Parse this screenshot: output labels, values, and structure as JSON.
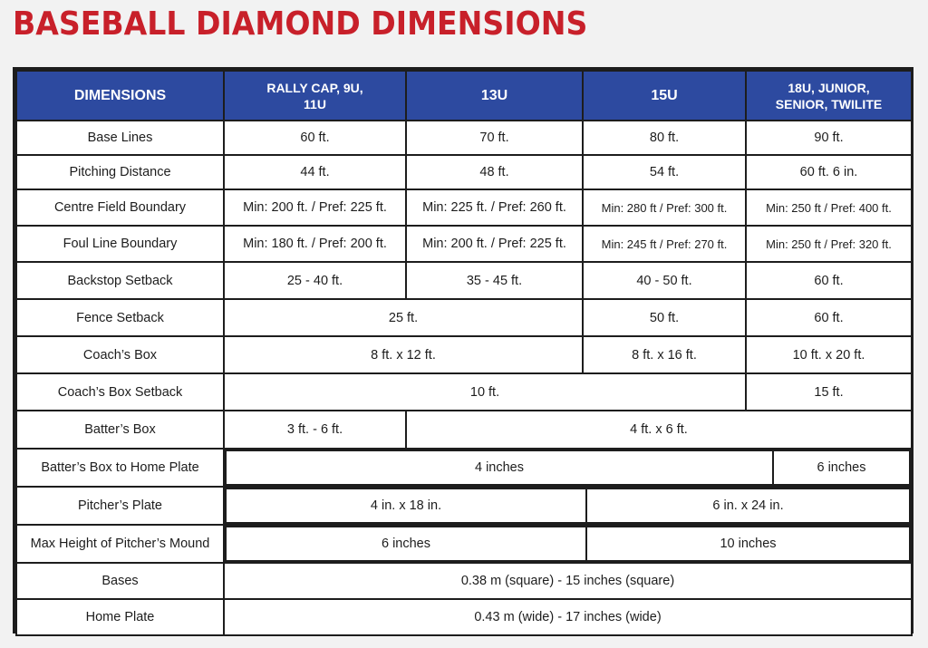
{
  "title": "BASEBALL DIAMOND DIMENSIONS",
  "headers": [
    "DIMENSIONS",
    "RALLY CAP, 9U, 11U",
    "13U",
    "15U",
    "18U, JUNIOR, SENIOR, TWILITE"
  ],
  "rows": {
    "base_lines": {
      "label": "Base Lines",
      "c1": "60 ft.",
      "c2": "70 ft.",
      "c3": "80 ft.",
      "c4": "90 ft."
    },
    "pitching_distance": {
      "label": "Pitching Distance",
      "c1": "44 ft.",
      "c2": "48 ft.",
      "c3": "54 ft.",
      "c4": "60 ft. 6 in."
    },
    "centre_field": {
      "label": "Centre Field Boundary",
      "c1": "Min: 200 ft. / Pref: 225 ft.",
      "c2": "Min: 225 ft. / Pref: 260 ft.",
      "c3": "Min: 280 ft / Pref: 300 ft.",
      "c4": "Min: 250 ft / Pref: 400 ft."
    },
    "foul_line": {
      "label": "Foul Line Boundary",
      "c1": "Min: 180 ft. / Pref: 200 ft.",
      "c2": "Min: 200 ft. / Pref: 225 ft.",
      "c3": "Min: 245 ft / Pref: 270 ft.",
      "c4": "Min: 250 ft / Pref: 320 ft."
    },
    "backstop": {
      "label": "Backstop Setback",
      "c1": "25 - 40 ft.",
      "c2": "35 - 45 ft.",
      "c3": "40 - 50 ft.",
      "c4": "60 ft."
    },
    "fence": {
      "label": "Fence Setback",
      "c12": "25 ft.",
      "c3": "50 ft.",
      "c4": "60 ft."
    },
    "coach_box": {
      "label": "Coach’s Box",
      "c12": "8 ft. x 12 ft.",
      "c3": "8 ft. x 16 ft.",
      "c4": "10 ft. x 20 ft."
    },
    "coach_box_setback": {
      "label": "Coach’s Box Setback",
      "c123": "10 ft.",
      "c4": "15 ft."
    },
    "batters_box": {
      "label": "Batter’s Box",
      "c1": "3 ft. - 6 ft.",
      "c234": "4 ft. x 6 ft."
    },
    "batters_box_home": {
      "label": "Batter’s Box to Home Plate",
      "left": "4 inches",
      "right": "6 inches"
    },
    "pitchers_plate": {
      "label": "Pitcher’s Plate",
      "left": "4 in. x 18 in.",
      "right": "6 in. x 24 in."
    },
    "mound_height": {
      "label": "Max Height of Pitcher’s Mound",
      "left": "6 inches",
      "right": "10 inches"
    },
    "bases": {
      "label": "Bases",
      "all": "0.38 m (square) - 15 inches (square)"
    },
    "home_plate": {
      "label": "Home Plate",
      "all": "0.43 m (wide) - 17 inches (wide)"
    }
  }
}
